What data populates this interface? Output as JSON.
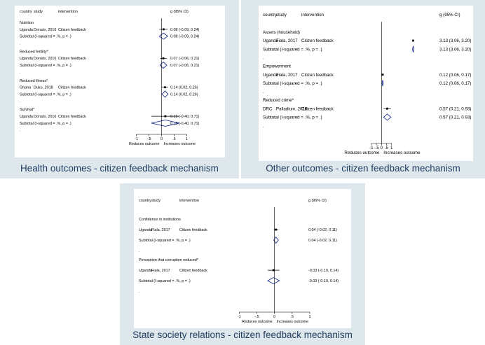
{
  "colors": {
    "panel_bg": "#dde7ec",
    "plot_bg": "#ffffff",
    "caption": "#1f3a5f",
    "diamond": "#1f2f8f"
  },
  "chart_data": [
    {
      "type": "forest",
      "caption": "Health outcomes - citizen feedback mechanism",
      "header": {
        "country": "country",
        "study": "study",
        "intervention": "intervention",
        "estimate": "g (95% CI)"
      },
      "axis": {
        "ticks": [
          -1,
          -0.5,
          0,
          0.5,
          1
        ],
        "tick_labels": [
          "-1",
          "-.5",
          "0",
          ".5",
          "1"
        ],
        "xlim": [
          -1.6,
          1.1
        ],
        "left_label": "Reduces outcome",
        "right_label": "Increases outcome"
      },
      "rows": [
        {
          "kind": "group",
          "label": "Nutrition"
        },
        {
          "kind": "study",
          "country": "Uganda",
          "study": "Donato, 2016",
          "intervention": "Citizen feedback",
          "est": 0.08,
          "lo": -0.09,
          "hi": 0.24,
          "ci": "0.08 (-0.09, 0.24)"
        },
        {
          "kind": "subtotal",
          "label": "Subtotal  (I-squared = .%, p = .)",
          "est": 0.08,
          "lo": -0.09,
          "hi": 0.24,
          "ci": "0.08 (-0.09, 0.24)"
        },
        {
          "kind": "gap",
          "label": "."
        },
        {
          "kind": "group",
          "label": "Reduced fertility*"
        },
        {
          "kind": "study",
          "country": "Uganda",
          "study": "Donato, 2016",
          "intervention": "Citizen feedback",
          "est": 0.07,
          "lo": -0.06,
          "hi": 0.21,
          "ci": "0.07 (-0.06, 0.21)"
        },
        {
          "kind": "subtotal",
          "label": "Subtotal  (I-squared = .%, p = .)",
          "est": 0.07,
          "lo": -0.06,
          "hi": 0.21,
          "ci": "0.07 (-0.06, 0.21)"
        },
        {
          "kind": "gap",
          "label": "."
        },
        {
          "kind": "group",
          "label": "Reduced illness*"
        },
        {
          "kind": "study",
          "country": "Ghana",
          "study": "Duku, 2018",
          "intervention": "Citizen feedback",
          "est": 0.14,
          "lo": 0.02,
          "hi": 0.26,
          "ci": "0.14 (0.02, 0.26)"
        },
        {
          "kind": "subtotal",
          "label": "Subtotal  (I-squared = .%, p = .)",
          "est": 0.14,
          "lo": 0.02,
          "hi": 0.26,
          "ci": "0.14 (0.02, 0.26)"
        },
        {
          "kind": "gap",
          "label": "."
        },
        {
          "kind": "group",
          "label": "Survival*"
        },
        {
          "kind": "study",
          "country": "Uganda",
          "study": "Donato, 2016",
          "intervention": "Citizen feedback",
          "est": 0.15,
          "lo": -0.4,
          "hi": 0.71,
          "ci": "0.15 (-0.40, 0.71)"
        },
        {
          "kind": "subtotal",
          "label": "Subtotal  (I-squared = .%, p = .)",
          "est": 0.15,
          "lo": -0.4,
          "hi": 0.71,
          "ci": "0.15 (-0.40, 0.71)"
        },
        {
          "kind": "gap",
          "label": "."
        }
      ]
    },
    {
      "type": "forest",
      "caption": "Other outcomes - citizen feedback mechanism",
      "header": {
        "country": "country",
        "study": "study",
        "intervention": "intervention",
        "estimate": "g (95% CI)"
      },
      "axis": {
        "ticks": [
          -1,
          -0.5,
          0,
          0.5,
          1
        ],
        "tick_labels": [
          "-1",
          "-.5",
          "0",
          ".5",
          "1"
        ],
        "xlim": [
          -1.75,
          3.3
        ],
        "left_label": "Reduces outcome",
        "right_label": "Increases outcome"
      },
      "rows": [
        {
          "kind": "group",
          "label": "Assets (household)"
        },
        {
          "kind": "study",
          "country": "Uganda",
          "study": "Fiala, 2017",
          "intervention": "Citizen feedback",
          "est": 3.13,
          "lo": 3.06,
          "hi": 3.2,
          "ci": "3.13 (3.06, 3.20)"
        },
        {
          "kind": "subtotal",
          "label": "Subtotal  (I-squared = .%, p = .)",
          "est": 3.13,
          "lo": 3.06,
          "hi": 3.2,
          "ci": "3.13 (3.06, 3.20)"
        },
        {
          "kind": "gap",
          "label": "."
        },
        {
          "kind": "group",
          "label": "Empowerment"
        },
        {
          "kind": "study",
          "country": "Uganda",
          "study": "Fiala, 2017",
          "intervention": "Citizen feedback",
          "est": 0.12,
          "lo": 0.06,
          "hi": 0.17,
          "ci": "0.12 (0.06, 0.17)"
        },
        {
          "kind": "subtotal",
          "label": "Subtotal  (I-squared = .%, p = .)",
          "est": 0.12,
          "lo": 0.06,
          "hi": 0.17,
          "ci": "0.12 (0.06, 0.17)"
        },
        {
          "kind": "gap",
          "label": "."
        },
        {
          "kind": "group",
          "label": "Reduced crime*"
        },
        {
          "kind": "study",
          "country": "DRC",
          "study": "Palladium, 2018",
          "intervention": "Citizen feedback",
          "est": 0.57,
          "lo": 0.21,
          "hi": 0.93,
          "ci": "0.57 (0.21, 0.93)"
        },
        {
          "kind": "subtotal",
          "label": "Subtotal  (I-squared = .%, p = .)",
          "est": 0.57,
          "lo": 0.21,
          "hi": 0.93,
          "ci": "0.57 (0.21, 0.93)"
        },
        {
          "kind": "gap",
          "label": "."
        }
      ]
    },
    {
      "type": "forest",
      "caption": "State society relations - citizen feedback mechanism",
      "header": {
        "country": "country",
        "study": "study",
        "intervention": "intervention",
        "estimate": "g (95% CI)"
      },
      "axis": {
        "ticks": [
          -1,
          -0.5,
          0,
          0.5,
          1
        ],
        "tick_labels": [
          "-1",
          "-.5",
          "0",
          ".5",
          "1"
        ],
        "xlim": [
          -1.9,
          1.1
        ],
        "left_label": "Reduces outcome",
        "right_label": "Increases outcome"
      },
      "rows": [
        {
          "kind": "group",
          "label": "Confidence in institutions"
        },
        {
          "kind": "study",
          "country": "Uganda",
          "study": "Fiala, 2017",
          "intervention": "Citizen feedback",
          "est": 0.04,
          "lo": -0.02,
          "hi": 0.11,
          "ci": "0.04 (-0.02, 0.11)"
        },
        {
          "kind": "subtotal",
          "label": "Subtotal  (I-squared = .%, p = .)",
          "est": 0.04,
          "lo": -0.02,
          "hi": 0.11,
          "ci": "0.04 (-0.02, 0.11)"
        },
        {
          "kind": "gap",
          "label": "."
        },
        {
          "kind": "group",
          "label": "Perception that corruption reduced*"
        },
        {
          "kind": "study",
          "country": "Uganda",
          "study": "Fiala, 2017",
          "intervention": "Citizen feedback",
          "est": -0.03,
          "lo": -0.19,
          "hi": 0.14,
          "ci": "-0.03 (-0.19, 0.14)"
        },
        {
          "kind": "subtotal",
          "label": "Subtotal  (I-squared = .%, p = .)",
          "est": -0.03,
          "lo": -0.19,
          "hi": 0.14,
          "ci": "-0.03 (-0.19, 0.14)"
        },
        {
          "kind": "gap",
          "label": "."
        }
      ]
    }
  ]
}
